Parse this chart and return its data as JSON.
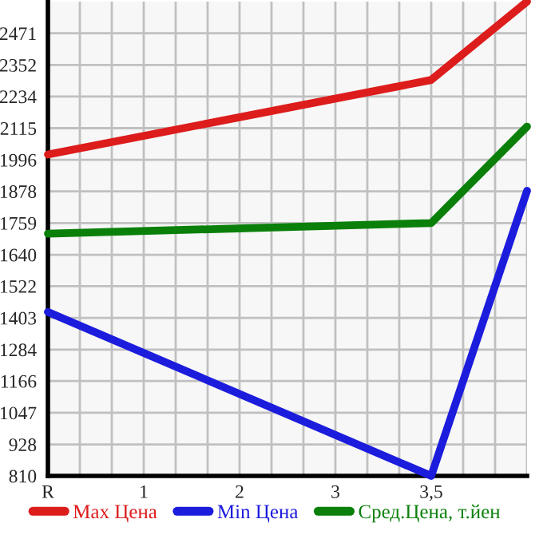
{
  "chart_data": {
    "type": "line",
    "categories": [
      "R",
      "1",
      "2",
      "3",
      "3,5",
      null
    ],
    "series": [
      {
        "name": "Max Цена",
        "color": "#dd1c1c",
        "values": [
          2016,
          null,
          null,
          null,
          2296,
          2590
        ]
      },
      {
        "name": "Min Цена",
        "color": "#1c1cdd",
        "values": [
          1425,
          null,
          null,
          null,
          810,
          1880
        ]
      },
      {
        "name": "Сред.Цена, т.йен",
        "color": "#0a800a",
        "values": [
          1719,
          null,
          null,
          null,
          1759,
          2121
        ]
      }
    ],
    "ylim": [
      810,
      2590
    ],
    "yticks": [
      810,
      928,
      1047,
      1166,
      1284,
      1403,
      1522,
      1640,
      1759,
      1878,
      1996,
      2115,
      2234,
      2352,
      2471
    ],
    "grid": true,
    "legend": "bottom",
    "marker": "none",
    "line_style": "solid"
  }
}
